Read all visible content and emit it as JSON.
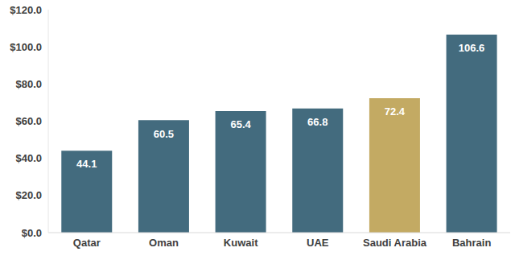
{
  "chart_data": {
    "type": "bar",
    "categories": [
      "Qatar",
      "Oman",
      "Kuwait",
      "UAE",
      "Saudi Arabia",
      "Bahrain"
    ],
    "values": [
      44.1,
      60.5,
      65.4,
      66.8,
      72.4,
      106.6
    ],
    "colors": [
      "#436b7e",
      "#436b7e",
      "#436b7e",
      "#436b7e",
      "#c3aa63",
      "#436b7e"
    ],
    "ylim": [
      0,
      120
    ],
    "yticks": [
      {
        "value": 0,
        "label": "$0.0"
      },
      {
        "value": 20,
        "label": "$20.0"
      },
      {
        "value": 40,
        "label": "$40.0"
      },
      {
        "value": 60,
        "label": "$60.0"
      },
      {
        "value": 80,
        "label": "$80.0"
      },
      {
        "value": 100,
        "label": "$100.0"
      },
      {
        "value": 120,
        "label": "$120.0"
      }
    ],
    "grid": false,
    "data_labels": true
  }
}
